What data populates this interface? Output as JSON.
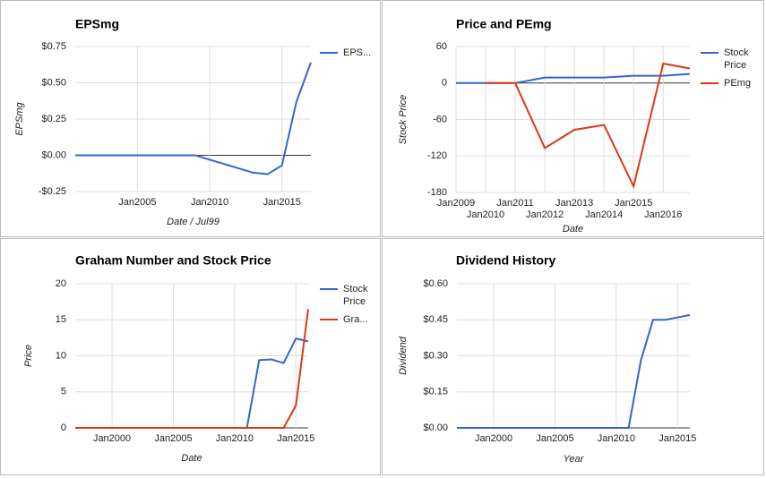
{
  "chart_data": [
    {
      "type": "line",
      "title": "EPSmg",
      "x_label": "Date / Jul99",
      "y_label": "EPSmg",
      "x": [
        2000.7,
        2009,
        2010,
        2011,
        2012,
        2013,
        2014,
        2015,
        2016,
        2017
      ],
      "xlim": [
        2000.7,
        2017
      ],
      "xticks": [
        {
          "value": 2005,
          "label": "Jan2005"
        },
        {
          "value": 2010,
          "label": "Jan2010"
        },
        {
          "value": 2015,
          "label": "Jan2015"
        }
      ],
      "ylim": [
        -0.25,
        0.75
      ],
      "yticks": [
        {
          "value": 0.75,
          "label": "$0.75"
        },
        {
          "value": 0.5,
          "label": "$0.50"
        },
        {
          "value": 0.25,
          "label": "$0.25"
        },
        {
          "value": 0,
          "label": "$0.00"
        },
        {
          "value": -0.25,
          "label": "-$0.25"
        }
      ],
      "grid": true,
      "legend": "right",
      "series": [
        {
          "name": "EPS...",
          "color": "#3366cc",
          "values": [
            0,
            0,
            -0.03,
            -0.06,
            -0.09,
            -0.12,
            -0.13,
            -0.07,
            0.37,
            0.64
          ]
        }
      ]
    },
    {
      "type": "line",
      "title": "Price and PEmg",
      "x_label": "Date",
      "y_label": "Stock Price",
      "x": [
        2009,
        2010,
        2011,
        2012,
        2013,
        2014,
        2015,
        2016,
        2016.9
      ],
      "xlim": [
        2009,
        2016.9
      ],
      "xticks": [
        {
          "value": 2009,
          "label": "Jan2009"
        },
        {
          "value": 2010,
          "label": "Jan2010"
        },
        {
          "value": 2011,
          "label": "Jan2011"
        },
        {
          "value": 2012,
          "label": "Jan2012"
        },
        {
          "value": 2013,
          "label": "Jan2013"
        },
        {
          "value": 2014,
          "label": "Jan2014"
        },
        {
          "value": 2015,
          "label": "Jan2015"
        },
        {
          "value": 2016,
          "label": "Jan2016"
        }
      ],
      "ylim": [
        -180,
        60
      ],
      "yticks": [
        60,
        0,
        -60,
        -120,
        -180
      ],
      "grid": true,
      "legend": "right",
      "series": [
        {
          "name": "Stock Price",
          "color": "#3366cc",
          "values": [
            0,
            0,
            0,
            9,
            9,
            9,
            12,
            12,
            15
          ]
        },
        {
          "name": "PEmg",
          "color": "#dc3912",
          "values": [
            null,
            0,
            0,
            -107,
            -77,
            -69,
            -170,
            32,
            24
          ]
        }
      ]
    },
    {
      "type": "line",
      "title": "Graham Number and Stock Price",
      "x_label": "Date",
      "y_label": "Price",
      "x": [
        1997,
        2011,
        2012,
        2013,
        2014,
        2015,
        2016
      ],
      "xlim": [
        1997,
        2016
      ],
      "xticks": [
        {
          "value": 2000,
          "label": "Jan2000"
        },
        {
          "value": 2005,
          "label": "Jan2005"
        },
        {
          "value": 2010,
          "label": "Jan2010"
        },
        {
          "value": 2015,
          "label": "Jan2015"
        }
      ],
      "ylim": [
        0,
        20
      ],
      "yticks": [
        20,
        15,
        10,
        5,
        0
      ],
      "grid": true,
      "legend": "right",
      "series": [
        {
          "name": "Stock Price",
          "color": "#3366cc",
          "values": [
            0,
            0,
            9.4,
            9.5,
            9.0,
            12.4,
            12.0
          ]
        },
        {
          "name": "Gra...",
          "color": "#dc3912",
          "values": [
            0,
            0,
            0,
            0,
            0,
            3.1,
            16.5
          ]
        }
      ]
    },
    {
      "type": "line",
      "title": "Dividend History",
      "x_label": "Year",
      "y_label": "Dividend",
      "x": [
        1997,
        2011,
        2012,
        2013,
        2014,
        2016
      ],
      "xlim": [
        1997,
        2016
      ],
      "xticks": [
        {
          "value": 2000,
          "label": "Jan2000"
        },
        {
          "value": 2005,
          "label": "Jan2005"
        },
        {
          "value": 2010,
          "label": "Jan2010"
        },
        {
          "value": 2015,
          "label": "Jan2015"
        }
      ],
      "ylim": [
        0,
        0.6
      ],
      "yticks": [
        {
          "value": 0.6,
          "label": "$0.60"
        },
        {
          "value": 0.45,
          "label": "$0.45"
        },
        {
          "value": 0.3,
          "label": "$0.30"
        },
        {
          "value": 0.15,
          "label": "$0.15"
        },
        {
          "value": 0,
          "label": "$0.00"
        }
      ],
      "grid": true,
      "series": [
        {
          "color": "#3366cc",
          "values": [
            0,
            0,
            0.28,
            0.45,
            0.45,
            0.47
          ]
        }
      ]
    }
  ]
}
